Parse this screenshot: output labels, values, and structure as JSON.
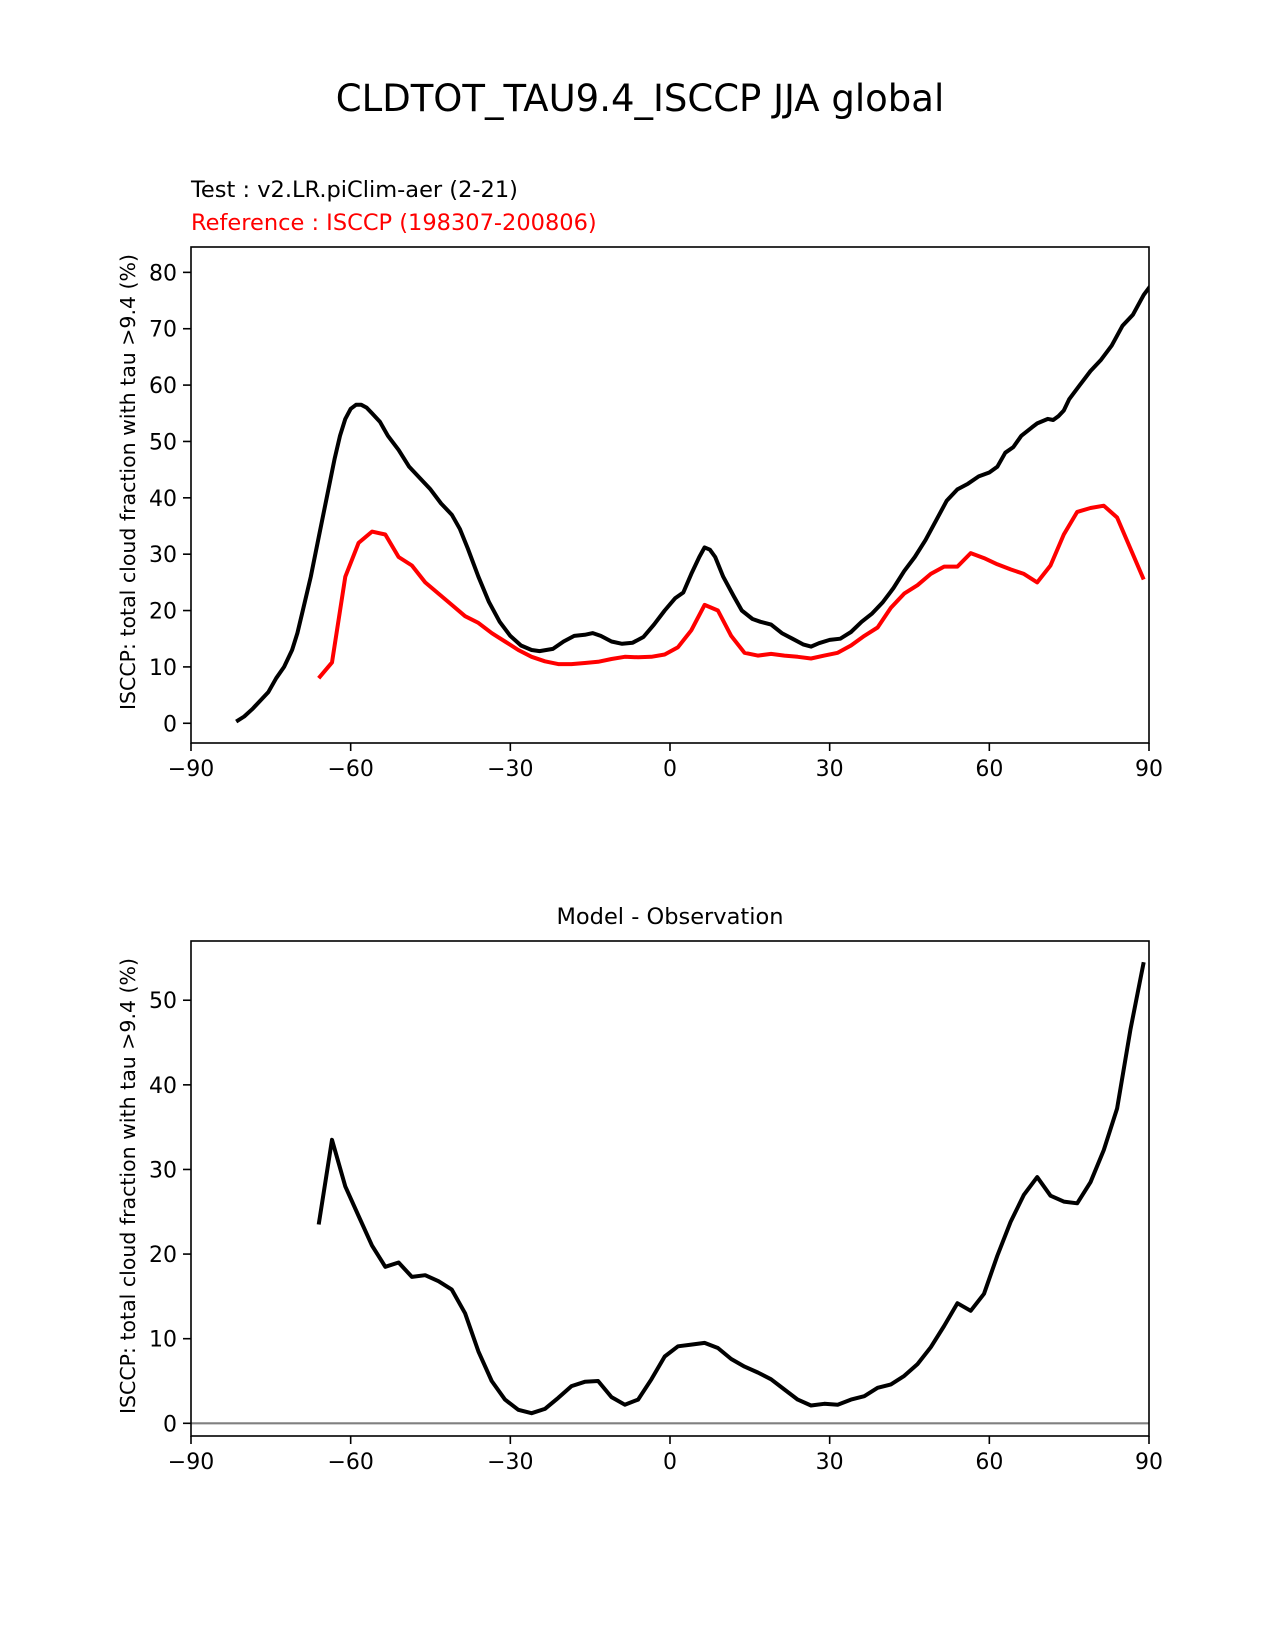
{
  "figure": {
    "title": "CLDTOT_TAU9.4_ISCCP JJA global",
    "test_label": "Test : v2.LR.piClim-aer (2-21)",
    "reference_label": "Reference : ISCCP (198307-200806)",
    "diff_title": "Model - Observation"
  },
  "colors": {
    "test": "#000000",
    "reference": "#ff0000",
    "zero_line": "#808080",
    "axes": "#000000"
  },
  "chart_data": [
    {
      "type": "line",
      "title": "",
      "xlabel": "",
      "ylabel": "ISCCP: total cloud fraction with tau >9.4 (%)",
      "xlim": [
        -90,
        90
      ],
      "ylim": [
        -3.5,
        84.5
      ],
      "xticks": [
        -90,
        -60,
        -30,
        0,
        30,
        60,
        90
      ],
      "xtick_labels": [
        "−90",
        "−60",
        "−30",
        "0",
        "30",
        "60",
        "90"
      ],
      "yticks": [
        0,
        10,
        20,
        30,
        40,
        50,
        60,
        70,
        80
      ],
      "ytick_labels": [
        "0",
        "10",
        "20",
        "30",
        "40",
        "50",
        "60",
        "70",
        "80"
      ],
      "grid": false,
      "series": [
        {
          "name": "Test : v2.LR.piClim-aer (2-21)",
          "color": "#000000",
          "points": [
            [
              -81.5,
              0.3
            ],
            [
              -80,
              1.2
            ],
            [
              -78.5,
              2.5
            ],
            [
              -77,
              4
            ],
            [
              -75.5,
              5.5
            ],
            [
              -74,
              8
            ],
            [
              -72.5,
              10
            ],
            [
              -71,
              13
            ],
            [
              -70,
              16
            ],
            [
              -69,
              20
            ],
            [
              -67.5,
              26
            ],
            [
              -66,
              33
            ],
            [
              -64.5,
              40
            ],
            [
              -63,
              47
            ],
            [
              -62,
              51
            ],
            [
              -61,
              54
            ],
            [
              -60,
              55.8
            ],
            [
              -59,
              56.5
            ],
            [
              -58,
              56.5
            ],
            [
              -57,
              56
            ],
            [
              -56,
              55
            ],
            [
              -54.5,
              53.5
            ],
            [
              -53,
              51
            ],
            [
              -51,
              48.5
            ],
            [
              -49,
              45.5
            ],
            [
              -47,
              43.5
            ],
            [
              -45,
              41.5
            ],
            [
              -43,
              39
            ],
            [
              -41,
              37
            ],
            [
              -39.5,
              34.5
            ],
            [
              -38,
              31
            ],
            [
              -36,
              26
            ],
            [
              -34,
              21.5
            ],
            [
              -32,
              18
            ],
            [
              -30,
              15.5
            ],
            [
              -28,
              13.8
            ],
            [
              -26,
              13
            ],
            [
              -24.5,
              12.8
            ],
            [
              -22,
              13.2
            ],
            [
              -20,
              14.5
            ],
            [
              -18,
              15.5
            ],
            [
              -16,
              15.7
            ],
            [
              -14.5,
              16
            ],
            [
              -13,
              15.5
            ],
            [
              -11,
              14.5
            ],
            [
              -9,
              14.1
            ],
            [
              -7,
              14.3
            ],
            [
              -5,
              15.3
            ],
            [
              -3,
              17.5
            ],
            [
              -1,
              20
            ],
            [
              1,
              22.2
            ],
            [
              2.5,
              23.2
            ],
            [
              4,
              26.5
            ],
            [
              5.5,
              29.5
            ],
            [
              6.5,
              31.2
            ],
            [
              7.5,
              30.8
            ],
            [
              8.5,
              29.5
            ],
            [
              10,
              26
            ],
            [
              12,
              22.5
            ],
            [
              13.5,
              20
            ],
            [
              15.5,
              18.5
            ],
            [
              17,
              18
            ],
            [
              19,
              17.5
            ],
            [
              21,
              16
            ],
            [
              23,
              15
            ],
            [
              25,
              14
            ],
            [
              26.5,
              13.6
            ],
            [
              28,
              14.2
            ],
            [
              30,
              14.8
            ],
            [
              32,
              15
            ],
            [
              34,
              16.2
            ],
            [
              36,
              18
            ],
            [
              38,
              19.5
            ],
            [
              40,
              21.5
            ],
            [
              42,
              24
            ],
            [
              44,
              27
            ],
            [
              46,
              29.5
            ],
            [
              48,
              32.5
            ],
            [
              50,
              36
            ],
            [
              52,
              39.5
            ],
            [
              54,
              41.5
            ],
            [
              56,
              42.5
            ],
            [
              58,
              43.8
            ],
            [
              60,
              44.5
            ],
            [
              61.5,
              45.5
            ],
            [
              63,
              48
            ],
            [
              64.5,
              49
            ],
            [
              66,
              51
            ],
            [
              68,
              52.5
            ],
            [
              69,
              53.2
            ],
            [
              71,
              54
            ],
            [
              72,
              53.8
            ],
            [
              73,
              54.5
            ],
            [
              74,
              55.5
            ],
            [
              75,
              57.5
            ],
            [
              77,
              60
            ],
            [
              79,
              62.5
            ],
            [
              81,
              64.5
            ],
            [
              83,
              67
            ],
            [
              85,
              70.5
            ],
            [
              87,
              72.5
            ],
            [
              89,
              76
            ],
            [
              91,
              78.5
            ],
            [
              92.5,
              80
            ],
            [
              94,
              80.3
            ]
          ]
        },
        {
          "name": "Reference : ISCCP (198307-200806)",
          "color": "#ff0000",
          "points": [
            [
              -66,
              8
            ],
            [
              -63.5,
              10.8
            ],
            [
              -61,
              26
            ],
            [
              -58.5,
              32
            ],
            [
              -56,
              34
            ],
            [
              -53.5,
              33.5
            ],
            [
              -51,
              29.5
            ],
            [
              -48.5,
              28
            ],
            [
              -46,
              25
            ],
            [
              -43.5,
              23
            ],
            [
              -41,
              21
            ],
            [
              -38.5,
              19
            ],
            [
              -36,
              17.8
            ],
            [
              -33.5,
              16
            ],
            [
              -31,
              14.5
            ],
            [
              -28.5,
              13
            ],
            [
              -26,
              11.8
            ],
            [
              -23.5,
              11
            ],
            [
              -21,
              10.5
            ],
            [
              -18.5,
              10.5
            ],
            [
              -16,
              10.7
            ],
            [
              -13.5,
              10.9
            ],
            [
              -11,
              11.4
            ],
            [
              -8.5,
              11.8
            ],
            [
              -6,
              11.7
            ],
            [
              -3.5,
              11.8
            ],
            [
              -1,
              12.2
            ],
            [
              1.5,
              13.5
            ],
            [
              4,
              16.5
            ],
            [
              6.5,
              21
            ],
            [
              9,
              20
            ],
            [
              11.5,
              15.5
            ],
            [
              14,
              12.5
            ],
            [
              16.5,
              12
            ],
            [
              19,
              12.3
            ],
            [
              21.5,
              12
            ],
            [
              24,
              11.8
            ],
            [
              26.5,
              11.5
            ],
            [
              29,
              12
            ],
            [
              31.5,
              12.5
            ],
            [
              34,
              13.8
            ],
            [
              36.5,
              15.5
            ],
            [
              39,
              17
            ],
            [
              41.5,
              20.5
            ],
            [
              44,
              23
            ],
            [
              46.5,
              24.5
            ],
            [
              49,
              26.5
            ],
            [
              51.5,
              27.8
            ],
            [
              54,
              27.8
            ],
            [
              56.5,
              30.2
            ],
            [
              59,
              29.3
            ],
            [
              61.5,
              28.2
            ],
            [
              64,
              27.3
            ],
            [
              66.5,
              26.5
            ],
            [
              69,
              25
            ],
            [
              71.5,
              28
            ],
            [
              74,
              33.5
            ],
            [
              76.5,
              37.5
            ],
            [
              79,
              38.2
            ],
            [
              81.5,
              38.6
            ],
            [
              84,
              36.5
            ],
            [
              86.5,
              31
            ],
            [
              89,
              25.5
            ]
          ]
        }
      ]
    },
    {
      "type": "line",
      "title": "Model - Observation",
      "xlabel": "",
      "ylabel": "ISCCP: total cloud fraction with tau >9.4 (%)",
      "xlim": [
        -90,
        90
      ],
      "ylim": [
        -1.5,
        57
      ],
      "xticks": [
        -90,
        -60,
        -30,
        0,
        30,
        60,
        90
      ],
      "xtick_labels": [
        "−90",
        "−60",
        "−30",
        "0",
        "30",
        "60",
        "90"
      ],
      "yticks": [
        0,
        10,
        20,
        30,
        40,
        50
      ],
      "ytick_labels": [
        "0",
        "10",
        "20",
        "30",
        "40",
        "50"
      ],
      "grid": false,
      "hline": 0,
      "series": [
        {
          "name": "",
          "color": "#000000",
          "points": [
            [
              -66,
              23.5
            ],
            [
              -63.5,
              33.5
            ],
            [
              -61,
              28
            ],
            [
              -58.5,
              24.5
            ],
            [
              -56,
              21
            ],
            [
              -53.5,
              18.5
            ],
            [
              -51,
              19
            ],
            [
              -48.5,
              17.3
            ],
            [
              -46,
              17.5
            ],
            [
              -43.5,
              16.8
            ],
            [
              -41,
              15.8
            ],
            [
              -38.5,
              13
            ],
            [
              -36,
              8.5
            ],
            [
              -33.5,
              5
            ],
            [
              -31,
              2.8
            ],
            [
              -28.5,
              1.6
            ],
            [
              -26,
              1.2
            ],
            [
              -23.5,
              1.7
            ],
            [
              -21,
              3
            ],
            [
              -18.5,
              4.4
            ],
            [
              -16,
              4.9
            ],
            [
              -13.5,
              5
            ],
            [
              -11,
              3.1
            ],
            [
              -8.5,
              2.2
            ],
            [
              -6,
              2.8
            ],
            [
              -3.5,
              5.2
            ],
            [
              -1,
              7.9
            ],
            [
              1.5,
              9.1
            ],
            [
              4,
              9.3
            ],
            [
              6.5,
              9.5
            ],
            [
              9,
              8.9
            ],
            [
              11.5,
              7.6
            ],
            [
              14,
              6.7
            ],
            [
              16.5,
              6
            ],
            [
              19,
              5.2
            ],
            [
              21.5,
              4
            ],
            [
              24,
              2.8
            ],
            [
              26.5,
              2.1
            ],
            [
              29,
              2.3
            ],
            [
              31.5,
              2.2
            ],
            [
              34,
              2.8
            ],
            [
              36.5,
              3.2
            ],
            [
              39,
              4.2
            ],
            [
              41.5,
              4.6
            ],
            [
              44,
              5.6
            ],
            [
              46.5,
              7
            ],
            [
              49,
              9
            ],
            [
              51.5,
              11.5
            ],
            [
              54,
              14.2
            ],
            [
              56.5,
              13.3
            ],
            [
              59,
              15.3
            ],
            [
              61.5,
              19.8
            ],
            [
              64,
              23.8
            ],
            [
              66.5,
              27
            ],
            [
              69,
              29.1
            ],
            [
              71.5,
              26.9
            ],
            [
              74,
              26.2
            ],
            [
              76.5,
              26
            ],
            [
              79,
              28.5
            ],
            [
              81.5,
              32.3
            ],
            [
              84,
              37.2
            ],
            [
              86.5,
              46.5
            ],
            [
              89,
              54.5
            ]
          ]
        }
      ]
    }
  ]
}
